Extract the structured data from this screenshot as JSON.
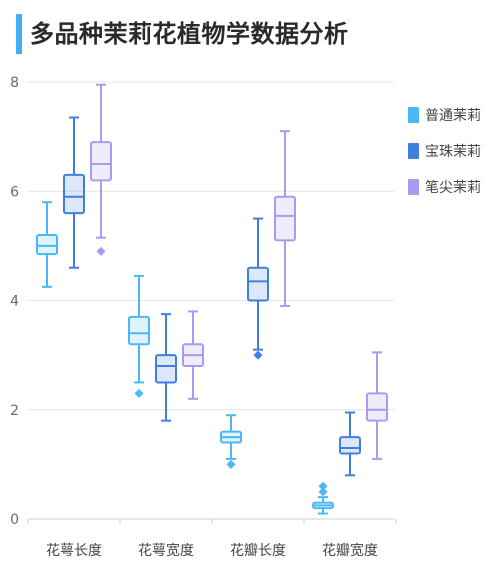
{
  "title": "多品种茉莉花植物学数据分析",
  "chart_data": {
    "type": "box",
    "title": "多品种茉莉花植物学数据分析",
    "categories": [
      "花萼长度",
      "花萼宽度",
      "花瓣长度",
      "花瓣宽度"
    ],
    "ylim": [
      0,
      8
    ],
    "yticks": [
      0,
      2,
      4,
      6,
      8
    ],
    "grid": true,
    "legend_position": "right",
    "series": [
      {
        "name": "普通茉莉",
        "color": "#4bb8f5",
        "boxes": [
          {
            "min": 4.25,
            "q1": 4.85,
            "median": 5.0,
            "q3": 5.2,
            "max": 5.8,
            "outliers": []
          },
          {
            "min": 2.5,
            "q1": 3.2,
            "median": 3.4,
            "q3": 3.7,
            "max": 4.45,
            "outliers": [
              2.3
            ]
          },
          {
            "min": 1.1,
            "q1": 1.4,
            "median": 1.5,
            "q3": 1.6,
            "max": 1.9,
            "outliers": [
              1.0
            ]
          },
          {
            "min": 0.1,
            "q1": 0.2,
            "median": 0.25,
            "q3": 0.3,
            "max": 0.4,
            "outliers": [
              0.5,
              0.6
            ]
          }
        ]
      },
      {
        "name": "宝珠茉莉",
        "color": "#3f7fde",
        "boxes": [
          {
            "min": 4.6,
            "q1": 5.6,
            "median": 5.9,
            "q3": 6.3,
            "max": 7.35,
            "outliers": []
          },
          {
            "min": 1.8,
            "q1": 2.5,
            "median": 2.8,
            "q3": 3.0,
            "max": 3.75,
            "outliers": []
          },
          {
            "min": 3.1,
            "q1": 4.0,
            "median": 4.35,
            "q3": 4.6,
            "max": 5.5,
            "outliers": [
              3.0
            ]
          },
          {
            "min": 0.8,
            "q1": 1.2,
            "median": 1.3,
            "q3": 1.5,
            "max": 1.95,
            "outliers": []
          }
        ]
      },
      {
        "name": "笔尖茉莉",
        "color": "#a69cf0",
        "boxes": [
          {
            "min": 5.15,
            "q1": 6.2,
            "median": 6.5,
            "q3": 6.9,
            "max": 7.95,
            "outliers": [
              4.9
            ]
          },
          {
            "min": 2.2,
            "q1": 2.8,
            "median": 3.0,
            "q3": 3.2,
            "max": 3.8,
            "outliers": []
          },
          {
            "min": 3.9,
            "q1": 5.1,
            "median": 5.55,
            "q3": 5.9,
            "max": 7.1,
            "outliers": []
          },
          {
            "min": 1.1,
            "q1": 1.8,
            "median": 2.0,
            "q3": 2.3,
            "max": 3.05,
            "outliers": []
          }
        ]
      }
    ]
  }
}
